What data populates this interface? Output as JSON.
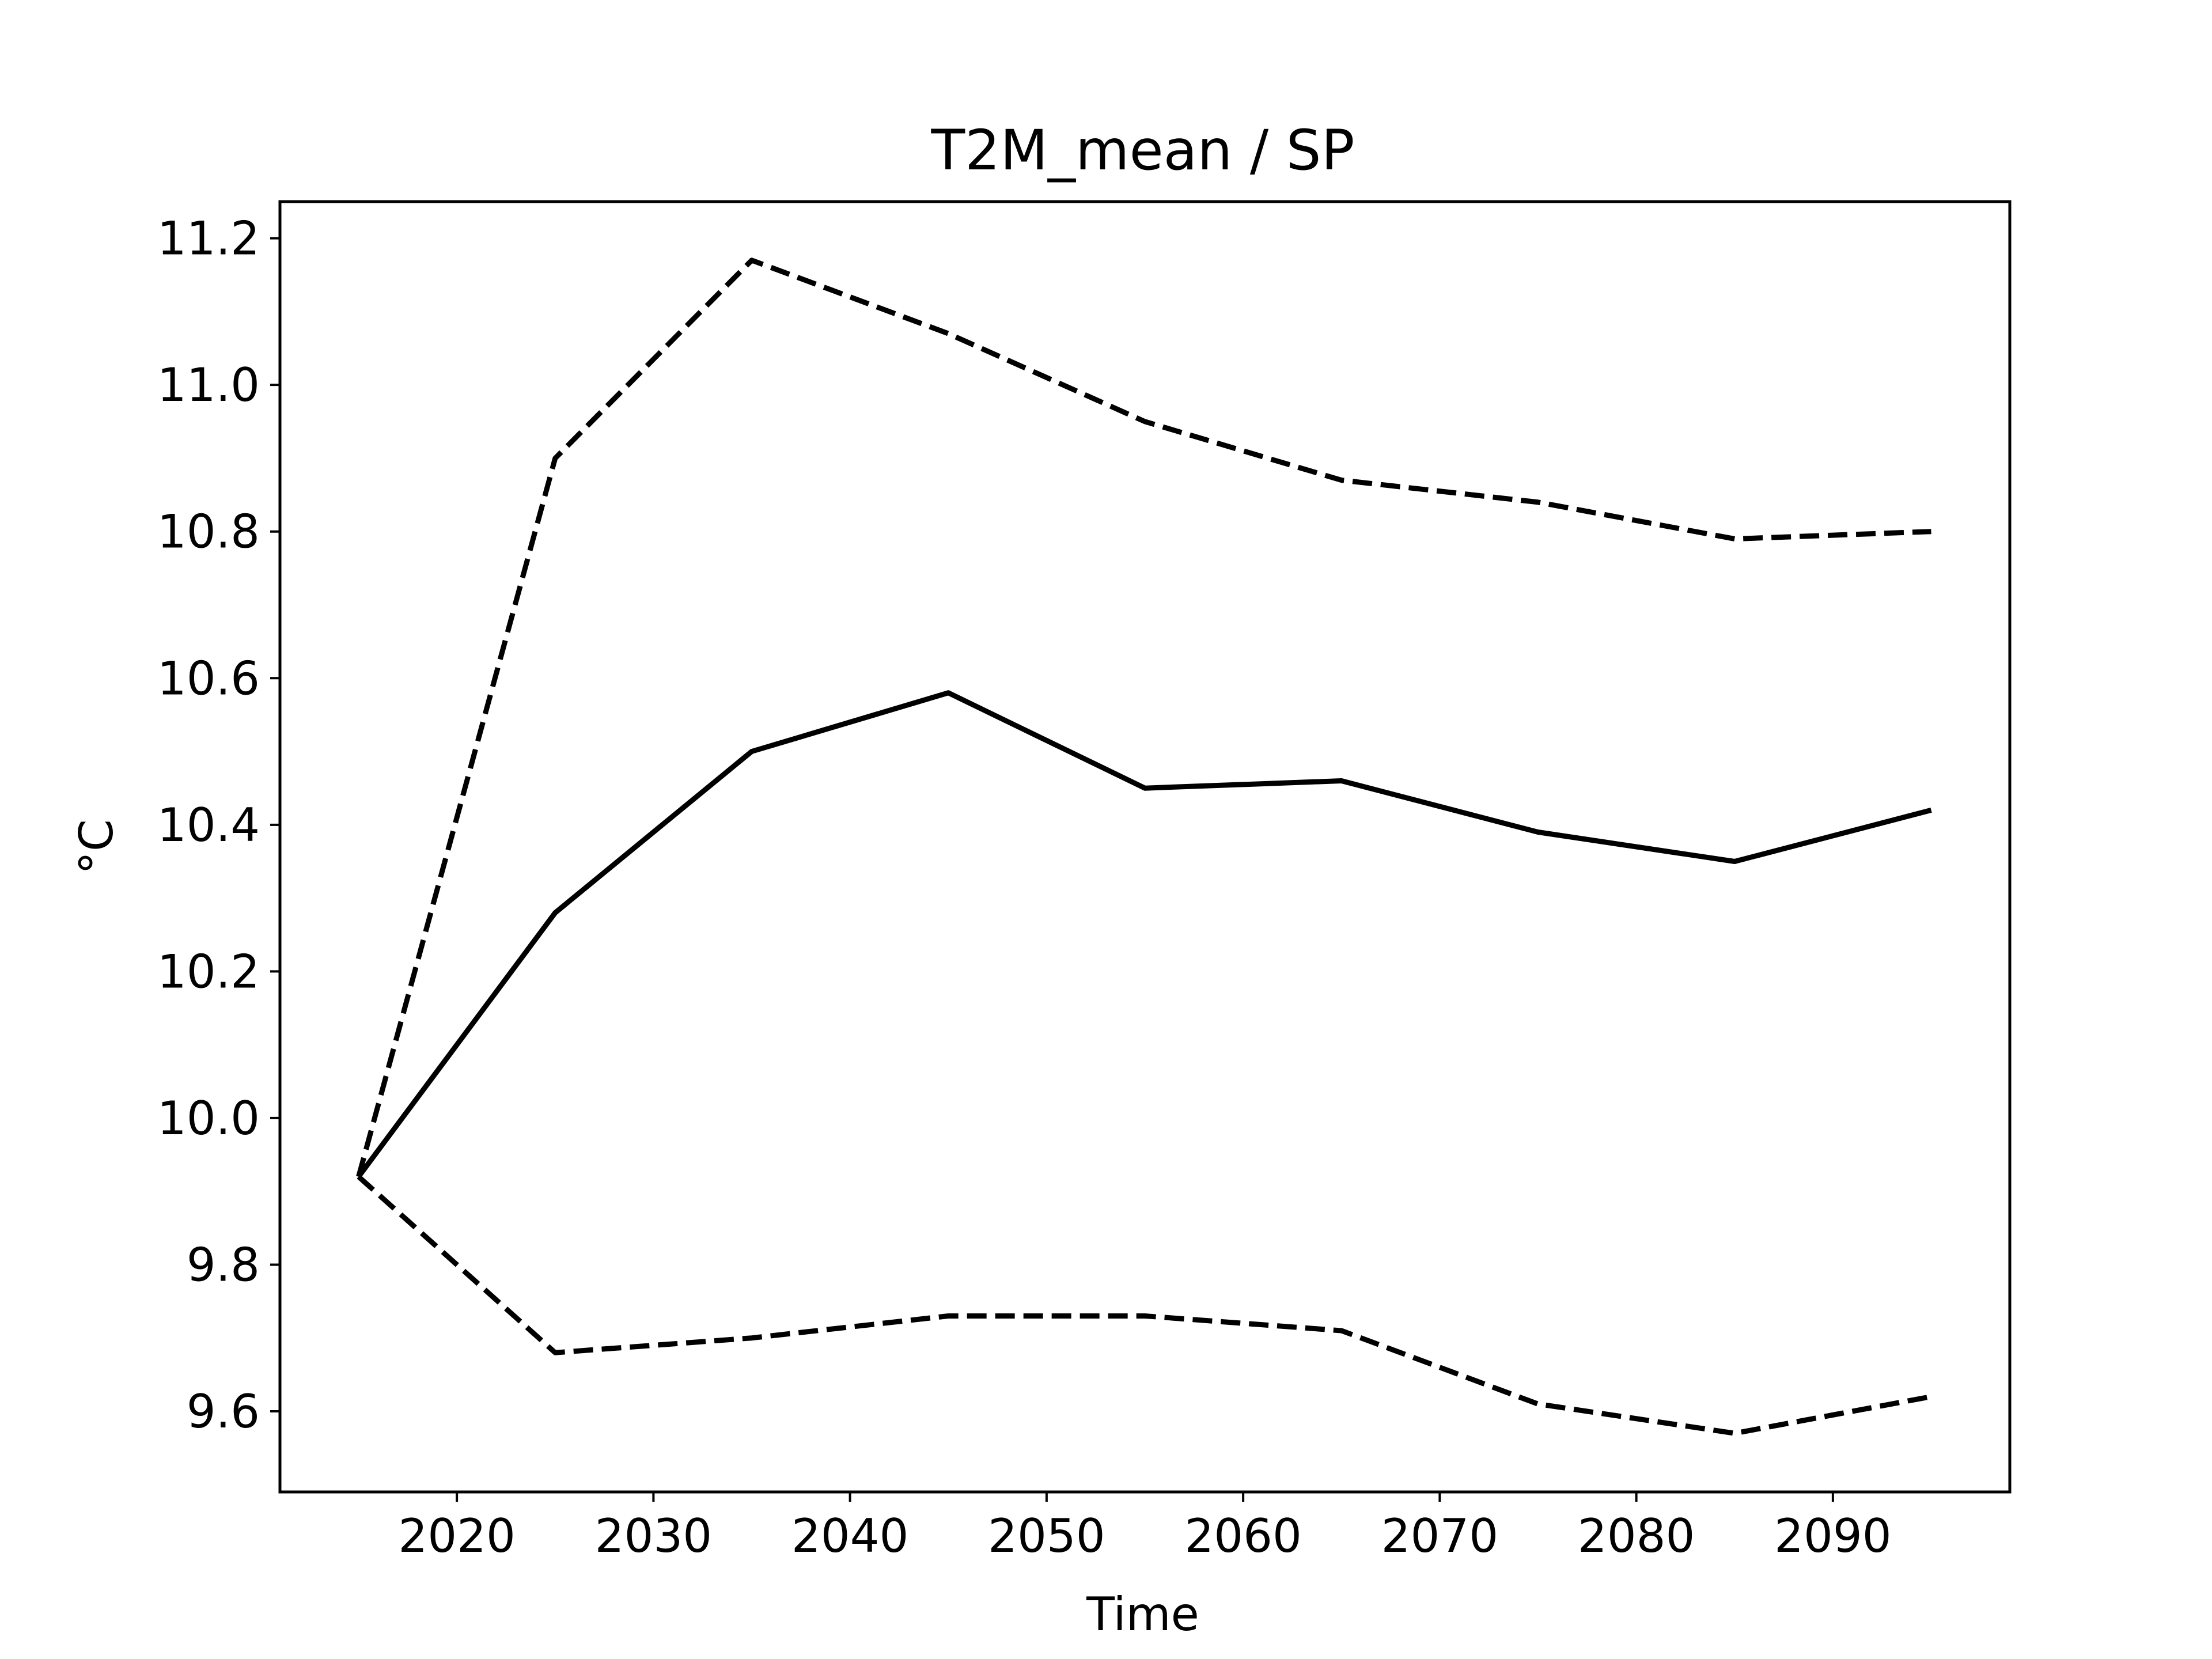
{
  "chart_data": {
    "type": "line",
    "title": "T2M_mean / SP",
    "xlabel": "Time",
    "ylabel": "°C",
    "x": [
      2015,
      2025,
      2035,
      2045,
      2055,
      2065,
      2075,
      2085,
      2095
    ],
    "xlim": [
      2011,
      2099
    ],
    "ylim": [
      9.49,
      11.25
    ],
    "xticks": [
      2020,
      2030,
      2040,
      2050,
      2060,
      2070,
      2080,
      2090
    ],
    "xtick_labels": [
      "2020",
      "2030",
      "2040",
      "2050",
      "2060",
      "2070",
      "2080",
      "2090"
    ],
    "yticks": [
      9.6,
      9.8,
      10.0,
      10.2,
      10.4,
      10.6,
      10.8,
      11.0,
      11.2
    ],
    "ytick_labels": [
      "9.6",
      "9.8",
      "10.0",
      "10.2",
      "10.4",
      "10.6",
      "10.8",
      "11.0",
      "11.2"
    ],
    "grid": false,
    "legend": "none",
    "series": [
      {
        "style": "dashed",
        "color": "#000000",
        "values": [
          9.92,
          10.9,
          11.17,
          11.07,
          10.95,
          10.87,
          10.84,
          10.79,
          10.8
        ]
      },
      {
        "style": "solid",
        "color": "#000000",
        "values": [
          9.92,
          10.28,
          10.5,
          10.58,
          10.45,
          10.46,
          10.39,
          10.35,
          10.42
        ]
      },
      {
        "style": "dashed",
        "color": "#000000",
        "values": [
          9.92,
          9.68,
          9.7,
          9.73,
          9.73,
          9.71,
          9.61,
          9.57,
          9.62
        ]
      }
    ]
  }
}
